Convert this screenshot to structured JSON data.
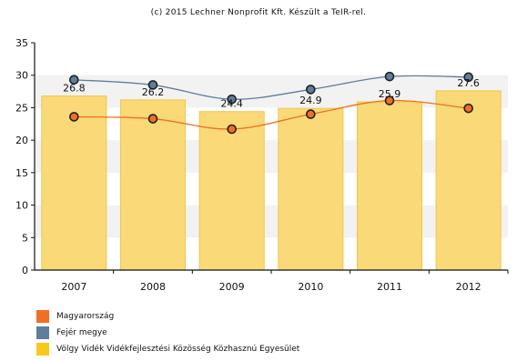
{
  "chart_data": {
    "type": "bar",
    "title": "(c) 2015 Lechner Nonprofit Kft. Készült a TeIR-rel.",
    "categories": [
      "2007",
      "2008",
      "2009",
      "2010",
      "2011",
      "2012"
    ],
    "ylim": [
      0,
      35
    ],
    "yticks": [
      "0",
      "5",
      "10",
      "15",
      "20",
      "25",
      "30",
      "35"
    ],
    "grid": "horizontal bands",
    "legend_position": "bottom-left",
    "series": [
      {
        "name": "Völgy Vidék Vidékfejlesztési Közösség Közhasznú Egyesület",
        "kind": "bar",
        "color": "#f9d978",
        "values": [
          26.8,
          26.2,
          24.4,
          24.9,
          25.9,
          27.6
        ],
        "labels": [
          "26.8",
          "26.2",
          "24.4",
          "24.9",
          "25.9",
          "27.6"
        ]
      },
      {
        "name": "Magyarország",
        "kind": "line",
        "color": "#f07023",
        "values": [
          23.6,
          23.3,
          21.7,
          24.0,
          26.1,
          24.9
        ]
      },
      {
        "name": "Fejér megye",
        "kind": "line",
        "color": "#5f7d9c",
        "values": [
          29.3,
          28.5,
          26.3,
          27.8,
          29.8,
          29.7
        ]
      }
    ]
  }
}
